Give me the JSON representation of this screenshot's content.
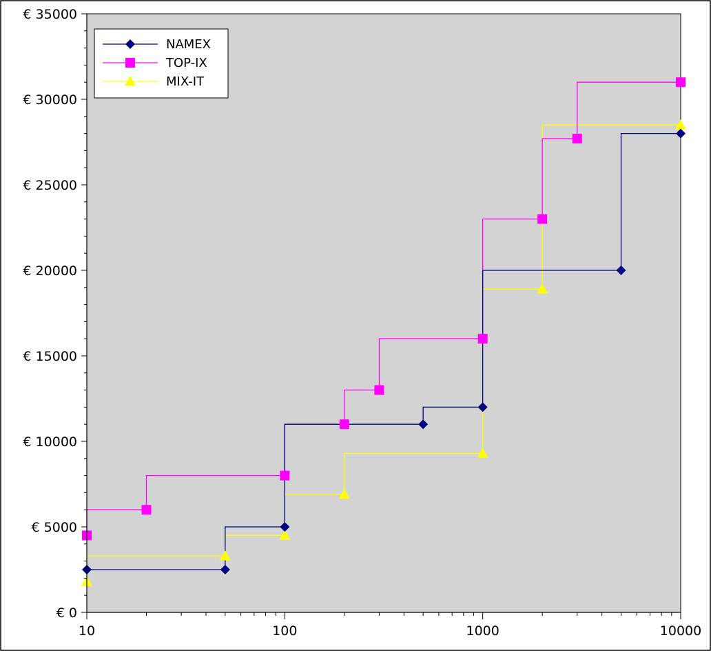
{
  "chart_data": {
    "type": "line",
    "title": "",
    "xlabel": "",
    "ylabel": "",
    "x_scale": "log",
    "step": true,
    "grid": false,
    "legend_position": "top-left",
    "plot_background": "#d3d3d3",
    "xlim": [
      10,
      10000
    ],
    "ylim": [
      0,
      35000
    ],
    "x_ticks": [
      "10",
      "100",
      "1000",
      "10000"
    ],
    "x_tick_values": [
      10,
      100,
      1000,
      10000
    ],
    "y_ticks": [
      "€ 0",
      "€ 5000",
      "€ 10000",
      "€ 15000",
      "€ 20000",
      "€ 25000",
      "€ 30000",
      "€ 35000"
    ],
    "y_tick_values": [
      0,
      5000,
      10000,
      15000,
      20000,
      25000,
      30000,
      35000
    ],
    "series": [
      {
        "name": "NAMEX",
        "color": "#000080",
        "marker": "diamond",
        "points": [
          [
            10,
            2500
          ],
          [
            50,
            2500
          ],
          [
            100,
            5000
          ],
          [
            500,
            11000
          ],
          [
            1000,
            12000
          ],
          [
            5000,
            20000
          ],
          [
            10000,
            28000
          ]
        ]
      },
      {
        "name": "TOP-IX",
        "color": "#ff00ff",
        "marker": "square",
        "points": [
          [
            10,
            4500
          ],
          [
            20,
            6000
          ],
          [
            100,
            8000
          ],
          [
            200,
            11000
          ],
          [
            300,
            13000
          ],
          [
            1000,
            16000
          ],
          [
            2000,
            23000
          ],
          [
            3000,
            27700
          ],
          [
            10000,
            31000
          ]
        ]
      },
      {
        "name": "MIX-IT",
        "color": "#ffff00",
        "marker": "triangle",
        "points": [
          [
            10,
            1800
          ],
          [
            50,
            3300
          ],
          [
            100,
            4500
          ],
          [
            200,
            6900
          ],
          [
            1000,
            9300
          ],
          [
            2000,
            18900
          ],
          [
            10000,
            28500
          ]
        ]
      }
    ]
  }
}
